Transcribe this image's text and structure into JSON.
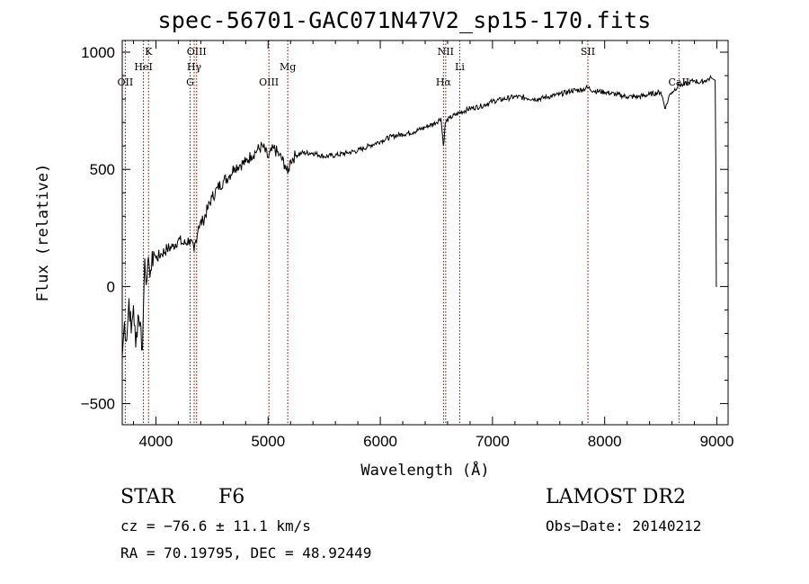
{
  "chart_data": {
    "type": "line",
    "title": "spec-56701-GAC071N47V2_sp15-170.fits",
    "xlabel": "Wavelength (Å)",
    "ylabel": "Flux (relative)",
    "xlim": [
      3700,
      9100
    ],
    "ylim": [
      -590,
      1050
    ],
    "x_ticks": [
      4000,
      5000,
      6000,
      7000,
      8000,
      9000
    ],
    "y_ticks": [
      -500,
      0,
      500,
      1000
    ],
    "x_tick_labels": [
      "4000",
      "5000",
      "6000",
      "7000",
      "8000",
      "9000"
    ],
    "y_tick_labels": [
      "−500",
      "0",
      "500",
      "1000"
    ],
    "grid": false,
    "series": [
      {
        "x": [
          3700,
          3720,
          3740,
          3760,
          3780,
          3800,
          3820,
          3840,
          3860,
          3880,
          3900,
          3920,
          3940,
          3960,
          3980,
          4000,
          4050,
          4100,
          4150,
          4200,
          4250,
          4300,
          4340,
          4380,
          4420,
          4460,
          4500,
          4550,
          4600,
          4650,
          4700,
          4750,
          4800,
          4850,
          4900,
          4950,
          5000,
          5050,
          5100,
          5150,
          5175,
          5200,
          5250,
          5300,
          5400,
          5500,
          5600,
          5700,
          5800,
          5900,
          6000,
          6100,
          6200,
          6300,
          6400,
          6500,
          6540,
          6563,
          6580,
          6620,
          6700,
          6800,
          6900,
          7000,
          7100,
          7200,
          7300,
          7400,
          7500,
          7600,
          7700,
          7800,
          7850,
          7900,
          8000,
          8100,
          8200,
          8300,
          8400,
          8500,
          8542,
          8580,
          8600,
          8662,
          8700,
          8750,
          8800,
          8850,
          8900,
          8950,
          8985,
          8990,
          8995,
          9000
        ],
        "y": [
          -300,
          -150,
          -230,
          -50,
          -200,
          -80,
          -260,
          -120,
          -150,
          -270,
          120,
          30,
          90,
          70,
          150,
          120,
          140,
          160,
          170,
          200,
          180,
          200,
          150,
          260,
          280,
          330,
          380,
          420,
          450,
          470,
          510,
          520,
          530,
          560,
          580,
          600,
          550,
          590,
          560,
          520,
          480,
          540,
          560,
          570,
          570,
          555,
          560,
          570,
          580,
          600,
          620,
          640,
          650,
          660,
          680,
          700,
          720,
          600,
          700,
          720,
          740,
          760,
          770,
          790,
          800,
          810,
          805,
          800,
          810,
          820,
          835,
          840,
          850,
          835,
          830,
          820,
          810,
          810,
          820,
          830,
          760,
          820,
          830,
          860,
          860,
          870,
          880,
          870,
          880,
          890,
          880,
          550,
          0,
          0
        ]
      }
    ],
    "lines": [
      {
        "label": "OII",
        "x": 3727,
        "row": 3
      },
      {
        "label": "HeI",
        "x": 3889,
        "row": 2
      },
      {
        "label": "K",
        "x": 3934,
        "row": 1
      },
      {
        "label": "G",
        "x": 4305,
        "row": 3
      },
      {
        "label": "Hγ",
        "x": 4341,
        "row": 2
      },
      {
        "label": "OIII",
        "x": 4363,
        "row": 1
      },
      {
        "label": "OIII",
        "x": 5007,
        "row": 3
      },
      {
        "label": "Mg",
        "x": 5175,
        "row": 2
      },
      {
        "label": "Hα",
        "x": 6563,
        "row": 3
      },
      {
        "label": "NII",
        "x": 6583,
        "row": 1
      },
      {
        "label": "Li",
        "x": 6708,
        "row": 2
      },
      {
        "label": "SII",
        "x": 7850,
        "row": 1
      },
      {
        "label": "CaII",
        "x": 8662,
        "row": 3
      }
    ],
    "line_color": "#8b0000",
    "spectrum_color": "#000000"
  },
  "footer": {
    "object_class": "STAR",
    "subclass": "F6",
    "survey": "LAMOST DR2",
    "redshift": "cz = −76.6 ± 11.1 km/s",
    "obs_date": "Obs−Date: 20140212",
    "coords": "RA =  70.19795, DEC =  48.92449"
  }
}
